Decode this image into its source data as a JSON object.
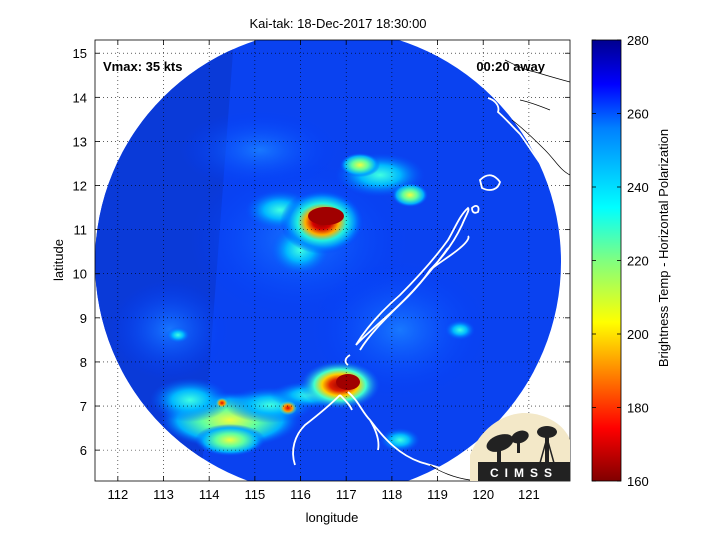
{
  "chart_data": {
    "type": "heatmap",
    "title": "Kai-tak: 18-Dec-2017 18:30:00",
    "xlabel": "longitude",
    "ylabel": "latitude",
    "xlim": [
      111.5,
      121.9
    ],
    "ylim": [
      5.3,
      15.3
    ],
    "x_ticks": [
      "112",
      "113",
      "114",
      "115",
      "116",
      "117",
      "118",
      "119",
      "120",
      "121"
    ],
    "y_ticks": [
      "6",
      "7",
      "8",
      "9",
      "10",
      "11",
      "12",
      "13",
      "14",
      "15"
    ],
    "grid": true,
    "annotations": {
      "vmax": "Vmax: 35 kts",
      "time_offset": "00:20 away"
    },
    "colorbar": {
      "label": "Brightness Temp - Horizontal Polarization",
      "range": [
        160,
        280
      ],
      "ticks": [
        "160",
        "180",
        "200",
        "220",
        "240",
        "260",
        "280"
      ],
      "colormap": "jet-reversed"
    },
    "swath": {
      "center": [
        116.6,
        10.2
      ],
      "radius_deg": 5.0,
      "background_value": 272
    },
    "features": [
      {
        "name": "cold-core-north",
        "lon": 116.55,
        "lat": 11.2,
        "value": 168
      },
      {
        "name": "cold-core-south",
        "lon": 117.05,
        "lat": 7.5,
        "value": 172
      },
      {
        "name": "warm-band-north",
        "lon": 117.0,
        "lat": 12.2,
        "value": 236
      },
      {
        "name": "warm-band-south",
        "lon": 115.0,
        "lat": 6.6,
        "value": 225
      }
    ],
    "logo_text": "CIMSS"
  }
}
